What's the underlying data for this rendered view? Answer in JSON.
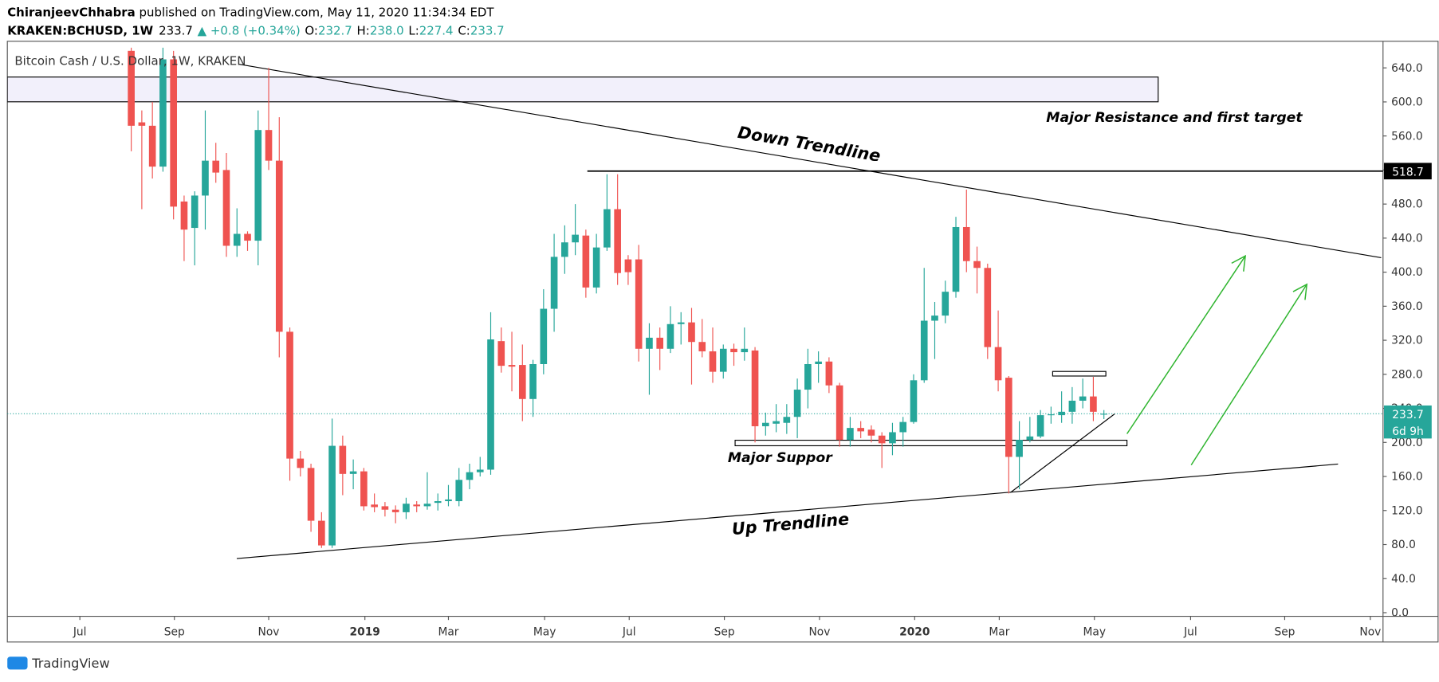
{
  "header": {
    "author": "ChiranjeevChhabra",
    "published": " published on TradingView.com, May 11, 2020 11:34:34 EDT",
    "symbol": "KRAKEN:BCHUSD, 1W",
    "price": "233.7",
    "change": "▲ +0.8 (+0.34%)",
    "ohlc": [
      {
        "label": "O:",
        "value": "232.7"
      },
      {
        "label": "H:",
        "value": "238.0"
      },
      {
        "label": "L:",
        "value": "227.4"
      },
      {
        "label": "C:",
        "value": "233.7"
      }
    ]
  },
  "chart_data": {
    "type": "candlestick",
    "title": "Bitcoin Cash / U.S. Dollar, 1W, KRAKEN",
    "up_color": "#26a69a",
    "down_color": "#ef5350",
    "x": [
      0,
      1,
      2,
      3,
      4,
      5,
      6,
      7,
      8,
      9,
      10,
      11,
      12,
      13,
      14,
      15,
      16,
      17,
      18,
      19,
      20,
      21,
      22,
      23,
      24,
      25,
      26,
      27,
      28,
      29,
      30,
      31,
      32,
      33,
      34,
      35,
      36,
      37,
      38,
      39,
      40,
      41,
      42,
      43,
      44,
      45,
      46,
      47,
      48,
      49,
      50,
      51,
      52,
      53,
      54,
      55,
      56,
      57,
      58,
      59,
      60,
      61,
      62,
      63,
      64,
      65,
      66,
      67,
      68,
      69,
      70,
      71,
      72,
      73,
      74,
      75,
      76,
      77,
      78,
      79,
      80,
      81,
      82,
      83,
      84,
      85,
      86,
      87,
      88,
      89,
      90,
      91,
      92
    ],
    "open": [
      660,
      576,
      572,
      524,
      650,
      483,
      452,
      490,
      531,
      520,
      431,
      445,
      437,
      567,
      531,
      330,
      181,
      170,
      108,
      79,
      196,
      163,
      166,
      127,
      125,
      121,
      118,
      127,
      125,
      129,
      131,
      131,
      156,
      165,
      168,
      319,
      291,
      291,
      251,
      292,
      357,
      418,
      435,
      443,
      382,
      429,
      474,
      415,
      415,
      310,
      323,
      310,
      339,
      341,
      318,
      307,
      283,
      310,
      306,
      308,
      219,
      222,
      223,
      230,
      262,
      292,
      295,
      267,
      203,
      217,
      215,
      208,
      199,
      212,
      224,
      273,
      343,
      349,
      377,
      453,
      413,
      405,
      312,
      276,
      183,
      203,
      207,
      232,
      232,
      236,
      249,
      254,
      232.7
    ],
    "high": [
      680,
      590,
      600,
      665,
      660,
      490,
      495,
      590,
      552,
      540,
      475,
      448,
      590,
      640,
      582,
      335,
      190,
      175,
      118,
      228,
      208,
      180,
      170,
      140,
      130,
      126,
      135,
      131,
      165,
      140,
      150,
      170,
      175,
      183,
      353,
      335,
      330,
      315,
      297,
      380,
      445,
      455,
      480,
      450,
      445,
      515,
      515,
      420,
      432,
      340,
      335,
      360,
      353,
      358,
      345,
      335,
      315,
      316,
      335,
      312,
      235,
      245,
      245,
      275,
      310,
      307,
      300,
      270,
      230,
      225,
      220,
      212,
      223,
      230,
      280,
      405,
      365,
      390,
      465,
      497,
      430,
      410,
      355,
      278,
      225,
      230,
      238,
      242,
      260,
      265,
      275,
      277,
      238
    ],
    "low": [
      542,
      474,
      510,
      518,
      462,
      413,
      408,
      450,
      505,
      418,
      418,
      425,
      408,
      520,
      300,
      155,
      160,
      95,
      76,
      76,
      138,
      145,
      120,
      118,
      113,
      105,
      110,
      118,
      121,
      120,
      125,
      125,
      145,
      160,
      162,
      282,
      260,
      225,
      230,
      280,
      330,
      398,
      420,
      370,
      375,
      425,
      385,
      385,
      295,
      256,
      285,
      305,
      315,
      268,
      300,
      270,
      275,
      290,
      296,
      200,
      208,
      212,
      210,
      205,
      240,
      270,
      258,
      195,
      195,
      205,
      200,
      170,
      185,
      195,
      222,
      270,
      298,
      340,
      370,
      400,
      375,
      298,
      260,
      140,
      145,
      200,
      205,
      222,
      223,
      222,
      240,
      225,
      227.4
    ],
    "close": [
      572,
      572,
      524,
      650,
      477,
      450,
      490,
      531,
      517,
      431,
      445,
      437,
      567,
      531,
      330,
      181,
      170,
      108,
      79,
      196,
      163,
      166,
      125,
      124,
      121,
      118,
      128,
      125,
      128,
      131,
      133,
      156,
      165,
      168,
      321,
      290,
      289,
      251,
      292,
      357,
      418,
      435,
      444,
      382,
      429,
      474,
      399,
      400,
      310,
      323,
      310,
      339,
      341,
      318,
      307,
      283,
      310,
      306,
      310,
      219,
      223,
      225,
      230,
      262,
      292,
      295,
      267,
      203,
      217,
      213,
      208,
      199,
      212,
      224,
      273,
      343,
      349,
      377,
      453,
      413,
      405,
      312,
      273,
      183,
      203,
      207,
      232,
      233,
      236,
      249,
      254,
      236,
      233.7
    ],
    "xlim": [
      -11.72,
      118.4
    ],
    "xticks": [
      {
        "value": -4.86,
        "label": "Jul"
      },
      {
        "value": 4.08,
        "label": "Sep"
      },
      {
        "value": 13.0,
        "label": "Nov"
      },
      {
        "value": 22.1,
        "label": "2019"
      },
      {
        "value": 30.0,
        "label": "Mar"
      },
      {
        "value": 39.1,
        "label": "May"
      },
      {
        "value": 47.1,
        "label": "Jul"
      },
      {
        "value": 56.1,
        "label": "Sep"
      },
      {
        "value": 65.1,
        "label": "Nov"
      },
      {
        "value": 74.1,
        "label": "2020"
      },
      {
        "value": 82.1,
        "label": "Mar"
      },
      {
        "value": 91.1,
        "label": "May"
      },
      {
        "value": 100.2,
        "label": "Jul"
      },
      {
        "value": 109.1,
        "label": "Sep"
      },
      {
        "value": 117.2,
        "label": "Nov"
      }
    ],
    "ylim": [
      -4.3,
      663.7
    ],
    "yticks": [
      {
        "value": 640,
        "label": "640.0"
      },
      {
        "value": 600,
        "label": "600.0"
      },
      {
        "value": 560,
        "label": "560.0"
      },
      {
        "value": 520,
        "label": "520.0"
      },
      {
        "value": 480,
        "label": "480.0"
      },
      {
        "value": 440,
        "label": "440.0"
      },
      {
        "value": 400,
        "label": "400.0"
      },
      {
        "value": 360,
        "label": "360.0"
      },
      {
        "value": 320,
        "label": "320.0"
      },
      {
        "value": 280,
        "label": "280.0"
      },
      {
        "value": 240,
        "label": "240.0"
      },
      {
        "value": 200,
        "label": "200.0"
      },
      {
        "value": 160,
        "label": "160.0"
      },
      {
        "value": 120,
        "label": "120.0"
      },
      {
        "value": 80,
        "label": "80.0"
      },
      {
        "value": 40,
        "label": "40.0"
      },
      {
        "value": 0,
        "label": "0.0"
      }
    ],
    "grid": false,
    "hline": 518.7,
    "last_price": 233.7,
    "countdown": "6d 9h",
    "annotations": {
      "down_trendline": "Down Trendline",
      "up_trendline": "Up Trendline",
      "resistance": "Major Resistance and first target",
      "support": "Major Suppor"
    }
  },
  "footer": {
    "logo": "TradingView"
  }
}
